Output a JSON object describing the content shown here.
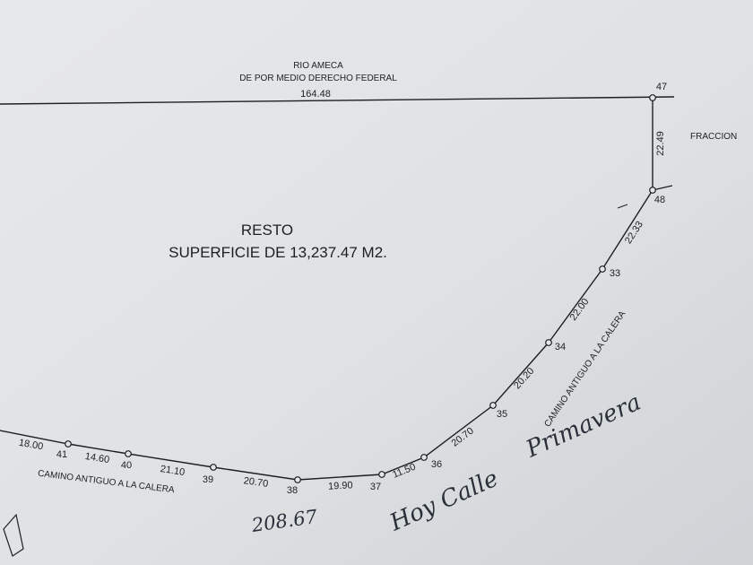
{
  "top_label": {
    "line1": "RIO AMECA",
    "line2": "DE POR MEDIO DERECHO FEDERAL",
    "length": "164.48"
  },
  "right_label": "FRACCION",
  "right_edge_length": "22.49",
  "center_label": {
    "title": "RESTO",
    "area": "SUPERFICIE DE 13,237.47 M2."
  },
  "road_label": "CAMINO ANTIGUO A LA CALERA",
  "road_label_curve": "CAMINO ANTIGUO A LA CALERA",
  "vertices": [
    "41",
    "40",
    "39",
    "38",
    "37",
    "36",
    "35",
    "34",
    "33",
    "48",
    "47"
  ],
  "segments": [
    "18.00",
    "14.60",
    "21.10",
    "20.70",
    "19.90",
    "11.50",
    "20.70",
    "20.20",
    "22.00",
    "22.33"
  ],
  "handwritten": {
    "total": "208.67",
    "note_1": "Hoy Calle",
    "note_2": "Primavera"
  },
  "colors": {
    "paper": "#e4e6e8",
    "ink": "#1d1f22",
    "pen": "#2a2f3a"
  }
}
